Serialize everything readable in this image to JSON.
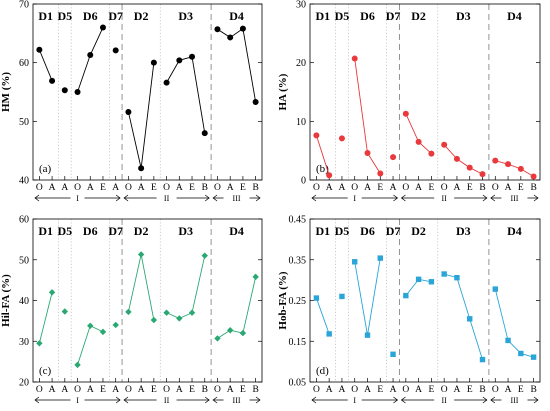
{
  "chart_data": [
    {
      "type": "line",
      "panel_label": "(a)",
      "ylabel": "HM (%)",
      "ylim": [
        40,
        70
      ],
      "yticks": [
        40,
        50,
        60,
        70
      ],
      "color": "#000000",
      "marker": "circle",
      "x": [
        "O",
        "A",
        "A",
        "O",
        "A",
        "E",
        "A",
        "O",
        "A",
        "E",
        "O",
        "A",
        "E",
        "B",
        "O",
        "A",
        "E",
        "B"
      ],
      "groups": [
        {
          "name": "D1",
          "start": 0,
          "count": 2
        },
        {
          "name": "D5",
          "start": 2,
          "count": 1
        },
        {
          "name": "D6",
          "start": 3,
          "count": 3
        },
        {
          "name": "D7",
          "start": 6,
          "count": 1
        },
        {
          "name": "D2",
          "start": 7,
          "count": 3
        },
        {
          "name": "D3",
          "start": 10,
          "count": 4
        },
        {
          "name": "D4",
          "start": 14,
          "count": 4
        }
      ],
      "regions": [
        {
          "name": "I",
          "start": 0,
          "end": 6
        },
        {
          "name": "II",
          "start": 7,
          "end": 13
        },
        {
          "name": "III",
          "start": 14,
          "end": 17
        }
      ],
      "values": [
        62.2,
        56.9,
        55.3,
        55.0,
        61.3,
        66.0,
        62.1,
        51.6,
        42.0,
        60.0,
        56.6,
        60.4,
        61.0,
        48.0,
        65.7,
        64.3,
        65.8,
        53.3
      ]
    },
    {
      "type": "line",
      "panel_label": "(b)",
      "ylabel": "HA (%)",
      "ylim": [
        0,
        30
      ],
      "yticks": [
        0,
        10,
        20,
        30
      ],
      "color": "#e8393c",
      "marker": "circle",
      "x": [
        "O",
        "A",
        "A",
        "O",
        "A",
        "E",
        "A",
        "O",
        "A",
        "E",
        "O",
        "A",
        "E",
        "B",
        "O",
        "A",
        "E",
        "B"
      ],
      "groups": [
        {
          "name": "D1",
          "start": 0,
          "count": 2
        },
        {
          "name": "D5",
          "start": 2,
          "count": 1
        },
        {
          "name": "D6",
          "start": 3,
          "count": 3
        },
        {
          "name": "D7",
          "start": 6,
          "count": 1
        },
        {
          "name": "D2",
          "start": 7,
          "count": 3
        },
        {
          "name": "D3",
          "start": 10,
          "count": 4
        },
        {
          "name": "D4",
          "start": 14,
          "count": 4
        }
      ],
      "regions": [
        {
          "name": "I",
          "start": 0,
          "end": 6
        },
        {
          "name": "II",
          "start": 7,
          "end": 13
        },
        {
          "name": "III",
          "start": 14,
          "end": 17
        }
      ],
      "values": [
        7.6,
        0.8,
        7.1,
        20.7,
        4.6,
        1.1,
        3.9,
        11.3,
        6.5,
        4.5,
        6.0,
        3.6,
        2.1,
        1.0,
        3.3,
        2.7,
        1.9,
        0.6
      ]
    },
    {
      "type": "line",
      "panel_label": "(c)",
      "ylabel": "Hil-FA (%)",
      "ylim": [
        20,
        60
      ],
      "yticks": [
        20,
        30,
        40,
        50,
        60
      ],
      "color": "#2aa872",
      "marker": "diamond",
      "x": [
        "O",
        "A",
        "A",
        "O",
        "A",
        "E",
        "A",
        "O",
        "A",
        "E",
        "O",
        "A",
        "E",
        "B",
        "O",
        "A",
        "E",
        "B"
      ],
      "groups": [
        {
          "name": "D1",
          "start": 0,
          "count": 2
        },
        {
          "name": "D5",
          "start": 2,
          "count": 1
        },
        {
          "name": "D6",
          "start": 3,
          "count": 3
        },
        {
          "name": "D7",
          "start": 6,
          "count": 1
        },
        {
          "name": "D2",
          "start": 7,
          "count": 3
        },
        {
          "name": "D3",
          "start": 10,
          "count": 4
        },
        {
          "name": "D4",
          "start": 14,
          "count": 4
        }
      ],
      "regions": [
        {
          "name": "I",
          "start": 0,
          "end": 6
        },
        {
          "name": "II",
          "start": 7,
          "end": 13
        },
        {
          "name": "III",
          "start": 14,
          "end": 17
        }
      ],
      "values": [
        29.5,
        42.0,
        37.3,
        24.2,
        33.8,
        32.3,
        34.0,
        37.2,
        51.3,
        35.2,
        37.0,
        35.6,
        37.0,
        51.0,
        30.7,
        32.7,
        32.0,
        45.8
      ]
    },
    {
      "type": "line",
      "panel_label": "(d)",
      "ylabel": "Hob-FA (%)",
      "ylim": [
        0.05,
        0.45
      ],
      "yticks": [
        0.05,
        0.15,
        0.25,
        0.35,
        0.45
      ],
      "color": "#2aa5d8",
      "marker": "square",
      "x": [
        "O",
        "A",
        "A",
        "O",
        "A",
        "E",
        "A",
        "O",
        "A",
        "E",
        "O",
        "A",
        "E",
        "B",
        "O",
        "A",
        "E",
        "B"
      ],
      "groups": [
        {
          "name": "D1",
          "start": 0,
          "count": 2
        },
        {
          "name": "D5",
          "start": 2,
          "count": 1
        },
        {
          "name": "D6",
          "start": 3,
          "count": 3
        },
        {
          "name": "D7",
          "start": 6,
          "count": 1
        },
        {
          "name": "D2",
          "start": 7,
          "count": 3
        },
        {
          "name": "D3",
          "start": 10,
          "count": 4
        },
        {
          "name": "D4",
          "start": 14,
          "count": 4
        }
      ],
      "regions": [
        {
          "name": "I",
          "start": 0,
          "end": 6
        },
        {
          "name": "II",
          "start": 7,
          "end": 13
        },
        {
          "name": "III",
          "start": 14,
          "end": 17
        }
      ],
      "values": [
        0.256,
        0.168,
        0.26,
        0.345,
        0.165,
        0.354,
        0.118,
        0.262,
        0.302,
        0.296,
        0.315,
        0.306,
        0.205,
        0.105,
        0.278,
        0.152,
        0.12,
        0.111
      ]
    }
  ]
}
